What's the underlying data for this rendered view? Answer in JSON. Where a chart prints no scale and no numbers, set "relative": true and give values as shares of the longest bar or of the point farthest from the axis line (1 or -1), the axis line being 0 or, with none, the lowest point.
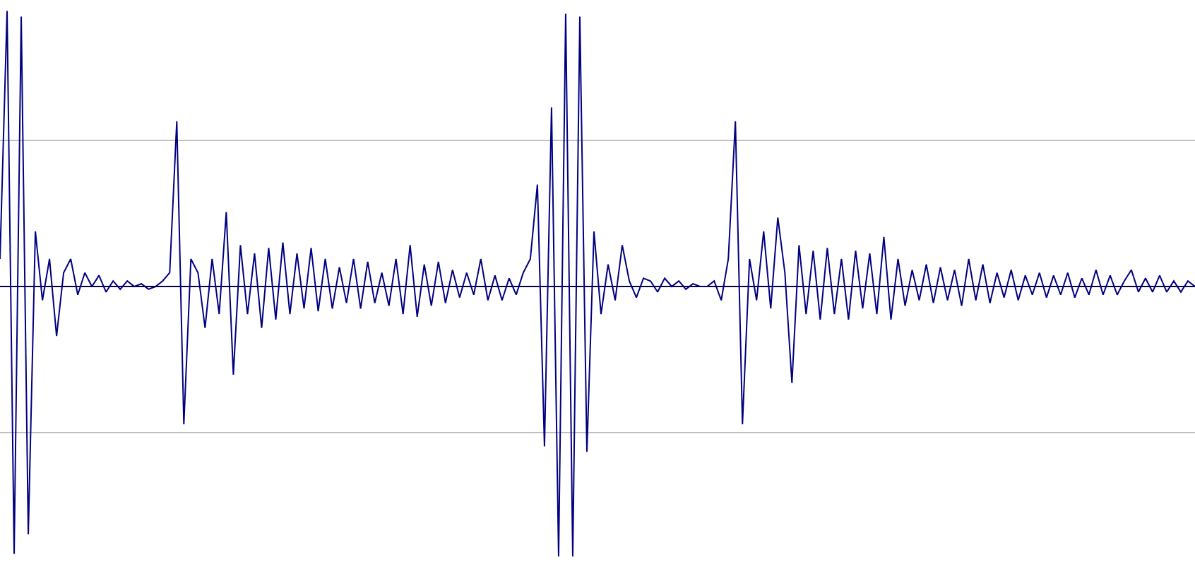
{
  "chart_data": {
    "type": "line",
    "relative": true,
    "categories": [
      null,
      null,
      null,
      null,
      null,
      null,
      null,
      null,
      null,
      null,
      null,
      null,
      null,
      null,
      null,
      null,
      null,
      null,
      null,
      null,
      null,
      null,
      null,
      null,
      null,
      null,
      null,
      null,
      null,
      null,
      null,
      null,
      null,
      null,
      null,
      null,
      null,
      null,
      null,
      null,
      null,
      null,
      null,
      null,
      null,
      null,
      null,
      null,
      null,
      null,
      null,
      null,
      null,
      null,
      null,
      null,
      null,
      null,
      null,
      null,
      null,
      null,
      null,
      null,
      null,
      null,
      null,
      null,
      null,
      null,
      null,
      null,
      null,
      null,
      null,
      null,
      null,
      null,
      null,
      null,
      null,
      null,
      null,
      null,
      null,
      null,
      null,
      null,
      null,
      null,
      null,
      null,
      null,
      null,
      null,
      null,
      null,
      null,
      null,
      null,
      null,
      null,
      null,
      null,
      null,
      null,
      null,
      null,
      null,
      null,
      null,
      null,
      null,
      null,
      null,
      null,
      null,
      null,
      null,
      null,
      null,
      null,
      null,
      null,
      null,
      null,
      null,
      null,
      null,
      null,
      null,
      null,
      null,
      null,
      null,
      null,
      null,
      null,
      null,
      null,
      null,
      null,
      null,
      null,
      null,
      null,
      null,
      null,
      null,
      null,
      null,
      null,
      null,
      null,
      null,
      null,
      null,
      null,
      null,
      null,
      null,
      null,
      null,
      null,
      null,
      null,
      null,
      null,
      null,
      null
    ],
    "series": [
      {
        "color": "#000080",
        "values": [
          0.1,
          1.0,
          -0.97,
          0.98,
          -0.9,
          0.2,
          -0.05,
          0.1,
          -0.18,
          0.05,
          0.1,
          -0.03,
          0.05,
          0.0,
          0.04,
          -0.02,
          0.02,
          -0.01,
          0.02,
          0.0,
          0.01,
          -0.01,
          0.0,
          0.02,
          0.05,
          0.6,
          -0.5,
          0.1,
          0.05,
          -0.15,
          0.1,
          -0.1,
          0.27,
          -0.32,
          0.15,
          -0.1,
          0.12,
          -0.15,
          0.14,
          -0.12,
          0.16,
          -0.1,
          0.12,
          -0.08,
          0.14,
          -0.09,
          0.1,
          -0.08,
          0.07,
          -0.06,
          0.1,
          -0.08,
          0.09,
          -0.06,
          0.05,
          -0.07,
          0.1,
          -0.1,
          0.15,
          -0.11,
          0.08,
          -0.07,
          0.09,
          -0.06,
          0.06,
          -0.04,
          0.05,
          -0.03,
          0.1,
          -0.05,
          0.04,
          -0.05,
          0.03,
          -0.03,
          0.05,
          0.1,
          0.37,
          -0.58,
          0.65,
          -0.98,
          0.99,
          -0.98,
          0.98,
          -0.6,
          0.2,
          -0.1,
          0.08,
          -0.05,
          0.15,
          0.02,
          -0.04,
          0.03,
          0.02,
          -0.02,
          0.03,
          0.0,
          0.02,
          -0.01,
          0.01,
          0.0,
          0.0,
          0.02,
          -0.05,
          0.1,
          0.6,
          -0.5,
          0.1,
          -0.05,
          0.2,
          -0.08,
          0.25,
          0.05,
          -0.35,
          0.15,
          -0.1,
          0.13,
          -0.12,
          0.14,
          -0.1,
          0.1,
          -0.12,
          0.13,
          -0.08,
          0.12,
          -0.1,
          0.18,
          -0.12,
          0.1,
          -0.07,
          0.06,
          -0.05,
          0.08,
          -0.06,
          0.07,
          -0.05,
          0.06,
          -0.07,
          0.1,
          -0.05,
          0.08,
          -0.06,
          0.05,
          -0.04,
          0.06,
          -0.05,
          0.04,
          -0.03,
          0.05,
          -0.04,
          0.04,
          -0.03,
          0.05,
          -0.04,
          0.03,
          -0.03,
          0.06,
          -0.03,
          0.04,
          -0.03,
          0.02,
          0.06,
          -0.02,
          0.03,
          -0.02,
          0.04,
          -0.02,
          0.02,
          -0.02,
          0.02,
          0.0
        ]
      }
    ],
    "ref_lines": [
      {
        "axis": "y",
        "value": 0.53,
        "color": "#c0c0c0"
      },
      {
        "axis": "y",
        "value": -0.53,
        "color": "#c0c0c0"
      }
    ]
  }
}
